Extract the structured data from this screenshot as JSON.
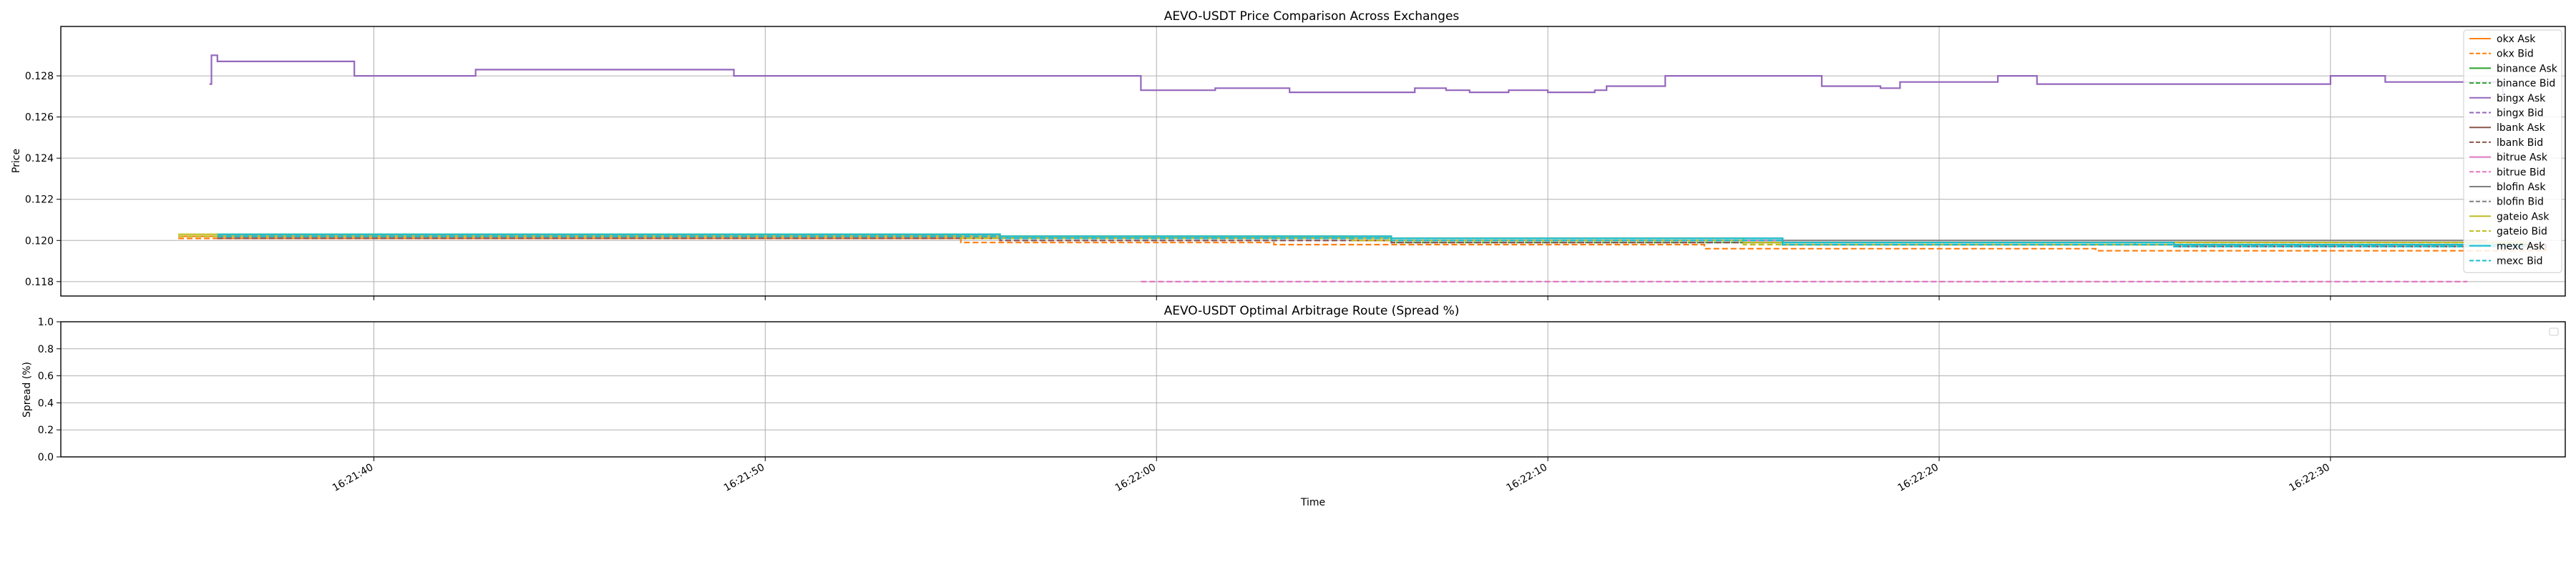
{
  "chart_data": [
    {
      "type": "line",
      "title": "AEVO-USDT Price Comparison Across Exchanges",
      "xlabel": "",
      "ylabel": "Price",
      "ylim": [
        0.1173,
        0.1304
      ],
      "yticks": [
        "0.118",
        "0.120",
        "0.122",
        "0.124",
        "0.126",
        "0.128"
      ],
      "ytick_values": [
        0.118,
        0.12,
        0.122,
        0.124,
        0.126,
        0.128
      ],
      "xlim": [
        "16:21:32",
        "16:22:36"
      ],
      "grid": true,
      "legend": "upper right",
      "series": [
        {
          "name": "okx Ask",
          "color": "#ff7f0e",
          "style": "solid",
          "x": [
            "16:21:35",
            "16:21:45",
            "16:21:55",
            "16:22:05",
            "16:22:15",
            "16:22:25",
            "16:22:35.5"
          ],
          "y": [
            0.1202,
            0.1202,
            0.1201,
            0.12,
            0.1199,
            0.1198,
            0.1198
          ]
        },
        {
          "name": "okx Bid",
          "color": "#ff7f0e",
          "style": "dashed",
          "x": [
            "16:21:35",
            "16:21:42",
            "16:21:46",
            "16:21:55",
            "16:22:00",
            "16:22:03",
            "16:22:10",
            "16:22:14",
            "16:22:20",
            "16:22:24",
            "16:22:35.5"
          ],
          "y": [
            0.1201,
            0.1201,
            0.1201,
            0.1199,
            0.1199,
            0.1198,
            0.1198,
            0.1196,
            0.1196,
            0.1195,
            0.1197
          ]
        },
        {
          "name": "binance Ask",
          "color": "#2ca02c",
          "style": "solid",
          "x": [
            "16:21:36",
            "16:21:46",
            "16:21:56",
            "16:22:06",
            "16:22:16",
            "16:22:26",
            "16:22:35"
          ],
          "y": [
            0.1203,
            0.1203,
            0.1202,
            0.12,
            0.1199,
            0.1198,
            0.1198
          ]
        },
        {
          "name": "binance Bid",
          "color": "#2ca02c",
          "style": "dashed",
          "x": [
            "16:21:36",
            "16:21:46",
            "16:21:56",
            "16:22:06",
            "16:22:16",
            "16:22:26",
            "16:22:35"
          ],
          "y": [
            0.1202,
            0.1202,
            0.1201,
            0.1199,
            0.1198,
            0.1197,
            0.1197
          ]
        },
        {
          "name": "bingx Ask",
          "color": "#9467bd",
          "style": "solid",
          "x": [
            "16:21:35.8",
            "16:21:35.85",
            "16:21:36",
            "16:21:38.5",
            "16:21:39.5",
            "16:21:42.2",
            "16:21:42.6",
            "16:21:48.8",
            "16:21:49.2",
            "16:21:59.2",
            "16:21:59.6",
            "16:22:01.5",
            "16:22:02.0",
            "16:22:03.0",
            "16:22:03.4",
            "16:22:06.0",
            "16:22:06.6",
            "16:22:07.0",
            "16:22:07.4",
            "16:22:08.0",
            "16:22:09.0",
            "16:22:10.0",
            "16:22:11.2",
            "16:22:11.5",
            "16:22:13.0",
            "16:22:13.5",
            "16:22:14.0",
            "16:22:17.0",
            "16:22:17.5",
            "16:22:18.5",
            "16:22:19.0",
            "16:22:21.5",
            "16:22:22.0",
            "16:22:22.5",
            "16:22:30.0",
            "16:22:31.0",
            "16:22:31.4",
            "16:22:34.4"
          ],
          "y": [
            0.1276,
            0.129,
            0.1287,
            0.1287,
            0.128,
            0.128,
            0.1283,
            0.1283,
            0.128,
            0.128,
            0.1273,
            0.1274,
            0.1274,
            0.1274,
            0.1272,
            0.1272,
            0.1274,
            0.1274,
            0.1273,
            0.1272,
            0.1273,
            0.1272,
            0.1273,
            0.1275,
            0.128,
            0.128,
            0.128,
            0.1275,
            0.1275,
            0.1274,
            0.1277,
            0.128,
            0.128,
            0.1276,
            0.128,
            0.128,
            0.1277,
            0.127
          ]
        },
        {
          "name": "bingx Bid",
          "color": "#9467bd",
          "style": "dashed",
          "x": [
            "16:21:36",
            "16:21:46",
            "16:21:56",
            "16:22:06",
            "16:22:16",
            "16:22:26",
            "16:22:34.4"
          ],
          "y": [
            0.1201,
            0.1201,
            0.12,
            0.1199,
            0.1198,
            0.1197,
            0.1197
          ]
        },
        {
          "name": "lbank Ask",
          "color": "#8c564b",
          "style": "solid",
          "x": [
            "16:21:36",
            "16:21:46",
            "16:21:56",
            "16:22:06",
            "16:22:16",
            "16:22:26",
            "16:22:35.5"
          ],
          "y": [
            0.1202,
            0.1202,
            0.1201,
            0.12,
            0.1199,
            0.1198,
            0.1197
          ]
        },
        {
          "name": "lbank Bid",
          "color": "#8c564b",
          "style": "dashed",
          "x": [
            "16:21:36",
            "16:21:46",
            "16:21:56",
            "16:22:06",
            "16:22:16",
            "16:22:26",
            "16:22:35.5"
          ],
          "y": [
            0.1201,
            0.1201,
            0.12,
            0.1199,
            0.1198,
            0.1197,
            0.1196
          ]
        },
        {
          "name": "bitrue Ask",
          "color": "#e377c2",
          "style": "solid",
          "x": [
            "16:21:36",
            "16:21:46",
            "16:21:56",
            "16:22:06",
            "16:22:16",
            "16:22:26",
            "16:22:35"
          ],
          "y": [
            0.1202,
            0.1202,
            0.1201,
            0.12,
            0.1199,
            0.1198,
            0.1198
          ]
        },
        {
          "name": "bitrue Bid",
          "color": "#e377c2",
          "style": "dashed",
          "x": [
            "16:21:59.6",
            "16:22:33.5"
          ],
          "y": [
            0.118,
            0.118
          ]
        },
        {
          "name": "blofin Ask",
          "color": "#7f7f7f",
          "style": "solid",
          "x": [
            "16:21:36",
            "16:21:46",
            "16:21:56",
            "16:22:06",
            "16:22:16",
            "16:22:26",
            "16:22:34"
          ],
          "y": [
            0.1203,
            0.1203,
            0.1202,
            0.1201,
            0.12,
            0.12,
            0.12
          ]
        },
        {
          "name": "blofin Bid",
          "color": "#7f7f7f",
          "style": "dashed",
          "x": [
            "16:21:36",
            "16:21:46",
            "16:21:56",
            "16:22:06",
            "16:22:16",
            "16:22:26",
            "16:22:34"
          ],
          "y": [
            0.1202,
            0.1202,
            0.1201,
            0.12,
            0.1199,
            0.1199,
            0.1199
          ]
        },
        {
          "name": "gateio Ask",
          "color": "#bcbd22",
          "style": "solid",
          "x": [
            "16:21:35",
            "16:21:45",
            "16:21:55",
            "16:22:05",
            "16:22:15",
            "16:22:25",
            "16:22:35"
          ],
          "y": [
            0.1203,
            0.1203,
            0.1202,
            0.1201,
            0.1199,
            0.1199,
            0.1198
          ]
        },
        {
          "name": "gateio Bid",
          "color": "#bcbd22",
          "style": "dashed",
          "x": [
            "16:21:35",
            "16:21:45",
            "16:21:55",
            "16:22:05",
            "16:22:15",
            "16:22:25",
            "16:22:35"
          ],
          "y": [
            0.1202,
            0.1202,
            0.1201,
            0.12,
            0.1198,
            0.1198,
            0.1197
          ]
        },
        {
          "name": "mexc Ask",
          "color": "#17becf",
          "style": "solid",
          "x": [
            "16:21:36",
            "16:21:46",
            "16:21:56",
            "16:22:06",
            "16:22:16",
            "16:22:26",
            "16:22:35"
          ],
          "y": [
            0.1203,
            0.1203,
            0.1202,
            0.1201,
            0.1199,
            0.1198,
            0.1198
          ]
        },
        {
          "name": "mexc Bid",
          "color": "#17becf",
          "style": "dashed",
          "x": [
            "16:21:36",
            "16:21:46",
            "16:21:56",
            "16:22:06",
            "16:22:16",
            "16:22:26",
            "16:22:35"
          ],
          "y": [
            0.1202,
            0.1202,
            0.1201,
            0.12,
            0.1198,
            0.1197,
            0.1197
          ]
        }
      ]
    },
    {
      "type": "line",
      "title": "AEVO-USDT Optimal Arbitrage Route (Spread %)",
      "xlabel": "Time",
      "ylabel": "Spread (%)",
      "ylim": [
        0.0,
        1.0
      ],
      "yticks": [
        "0.0",
        "0.2",
        "0.4",
        "0.6",
        "0.8",
        "1.0"
      ],
      "ytick_values": [
        0,
        0.2,
        0.4,
        0.6,
        0.8,
        1.0
      ],
      "xlim": [
        "16:21:32",
        "16:22:36"
      ],
      "xticks": [
        "16:21:40",
        "16:21:50",
        "16:22:00",
        "16:22:10",
        "16:22:20",
        "16:22:30"
      ],
      "grid": true,
      "legend": "upper right (empty)",
      "series": []
    }
  ]
}
